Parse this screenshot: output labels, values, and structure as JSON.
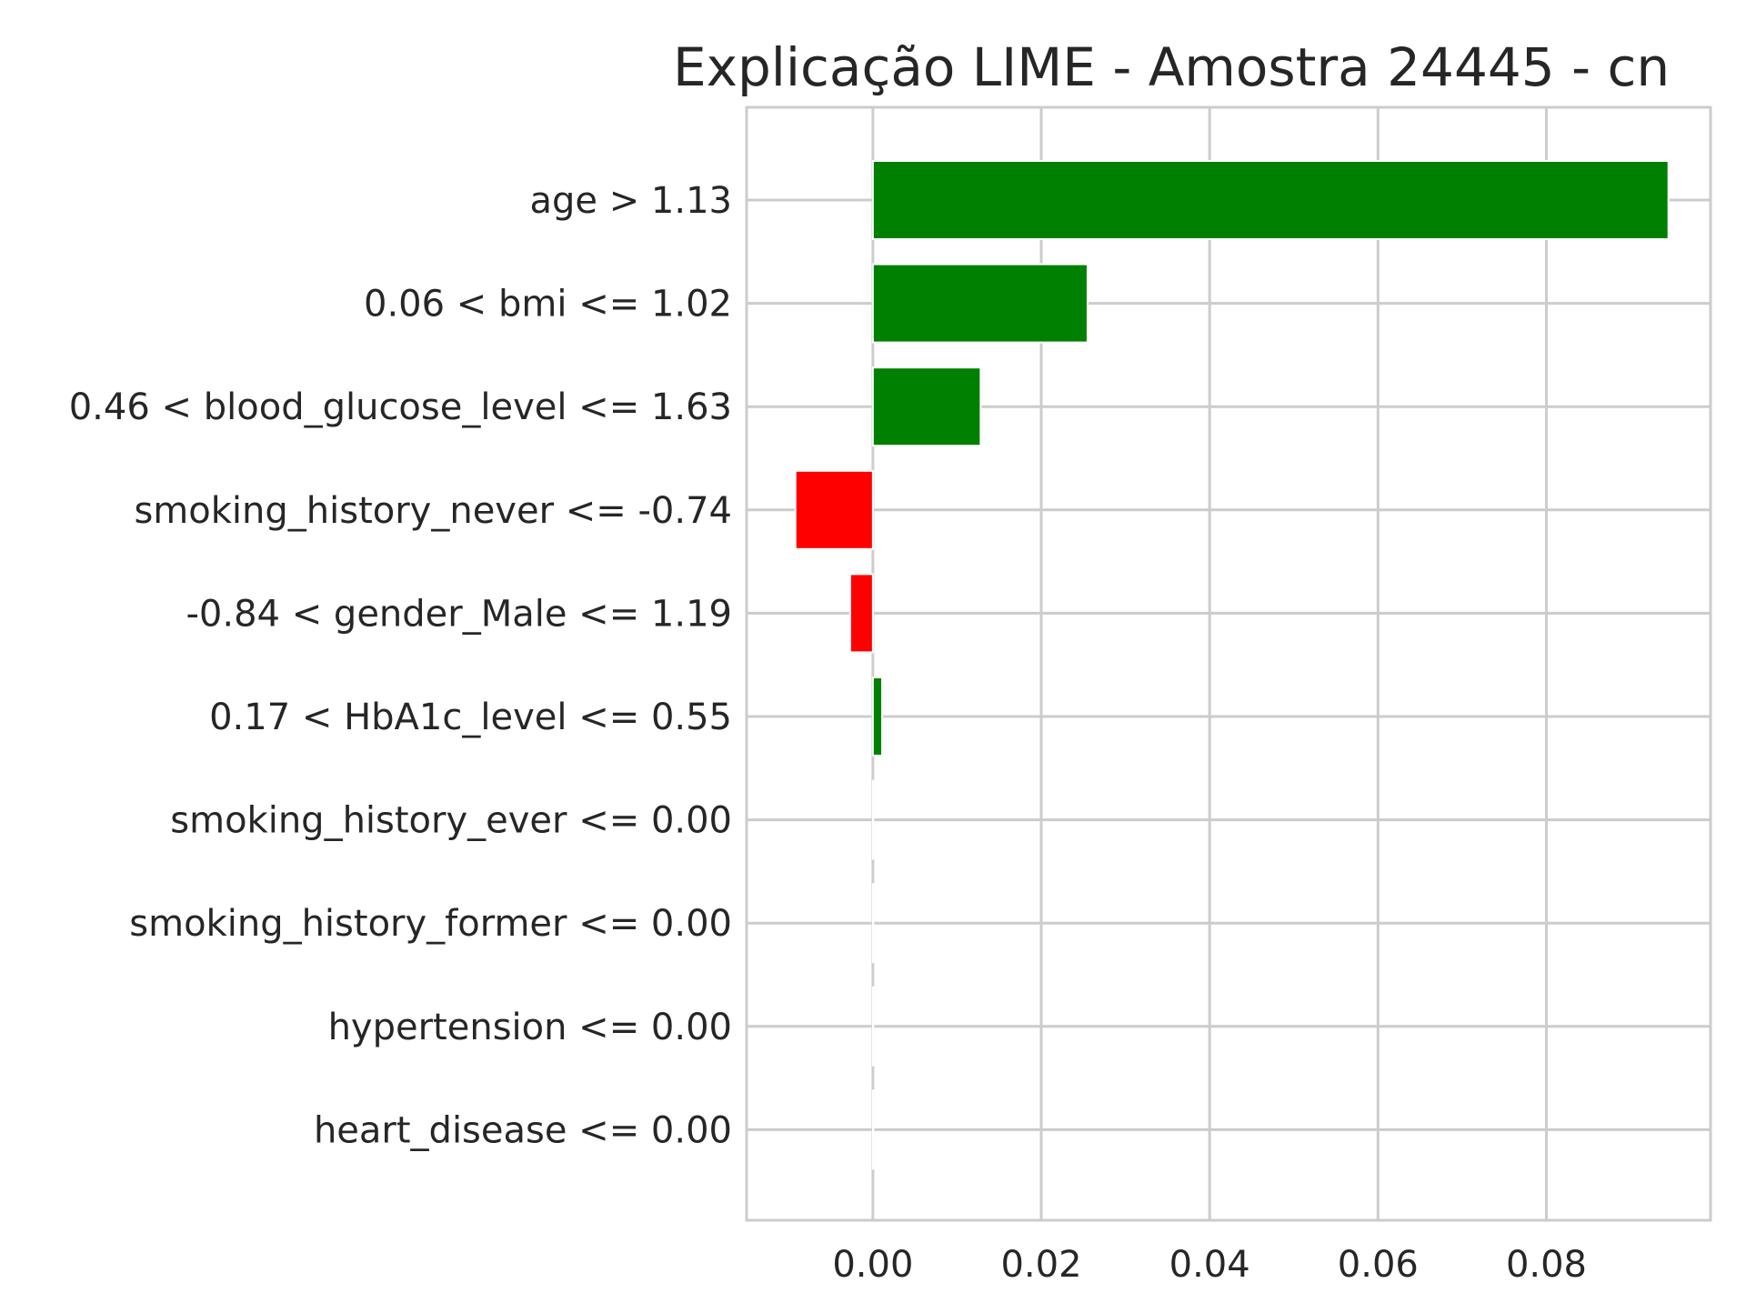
{
  "chart_data": {
    "type": "bar",
    "orientation": "horizontal",
    "title": "Explicação LIME - Amostra 24445 - cn",
    "xlabel": "",
    "ylabel": "",
    "xlim": [
      -0.015,
      0.0995
    ],
    "xticks": [
      0.0,
      0.02,
      0.04,
      0.06,
      0.08
    ],
    "xtick_labels": [
      "0.00",
      "0.02",
      "0.04",
      "0.06",
      "0.08"
    ],
    "grid": true,
    "categories": [
      "age > 1.13",
      "0.06 < bmi <= 1.02",
      "0.46 < blood_glucose_level <= 1.63",
      "smoking_history_never <= -0.74",
      "-0.84 < gender_Male <= 1.19",
      "0.17 < HbA1c_level <= 0.55",
      "smoking_history_ever <= 0.00",
      "smoking_history_former <= 0.00",
      "hypertension <= 0.00",
      "heart_disease <= 0.00"
    ],
    "values": [
      0.0945,
      0.0255,
      0.0128,
      -0.0092,
      -0.0027,
      0.0011,
      0.0,
      0.0,
      0.0,
      0.0
    ],
    "colors": {
      "positive": "#008000",
      "negative": "#ff0000",
      "grid": "#cccccc",
      "frame": "#cccccc",
      "text": "#262626"
    }
  }
}
